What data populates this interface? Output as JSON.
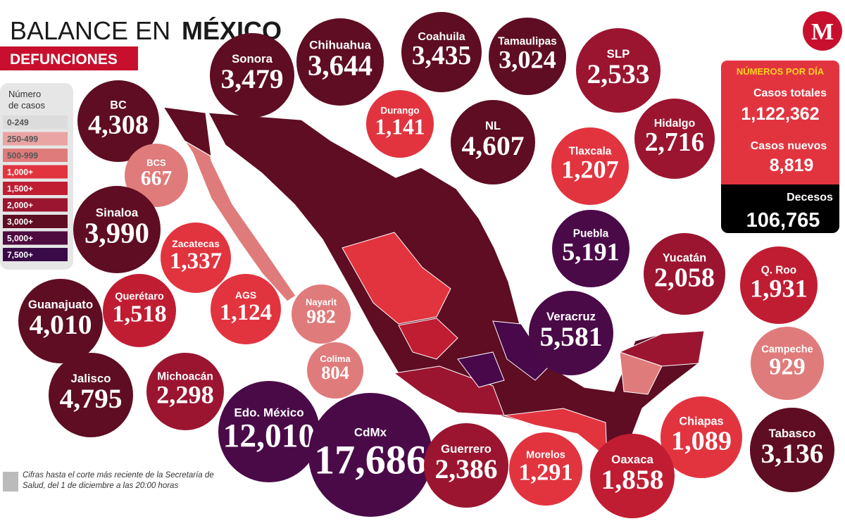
{
  "header": {
    "title_light": "BALANCE EN",
    "title_bold": "MÉXICO",
    "subtitle": "DEFUNCIONES"
  },
  "legend": {
    "title": "Número de casos",
    "items": [
      "0-249",
      "250-499",
      "500-999",
      "1,000+",
      "1,500+",
      "2,000+",
      "3,000+",
      "5,000+",
      "7,500+"
    ]
  },
  "states": [
    {
      "name": "Sonora",
      "value": "3,479"
    },
    {
      "name": "Chihuahua",
      "value": "3,644"
    },
    {
      "name": "Coahuila",
      "value": "3,435"
    },
    {
      "name": "Tamaulipas",
      "value": "3,024"
    },
    {
      "name": "SLP",
      "value": "2,533"
    },
    {
      "name": "BC",
      "value": "4,308"
    },
    {
      "name": "Durango",
      "value": "1,141"
    },
    {
      "name": "NL",
      "value": "4,607"
    },
    {
      "name": "Tlaxcala",
      "value": "1,207"
    },
    {
      "name": "Hidalgo",
      "value": "2,716"
    },
    {
      "name": "BCS",
      "value": "667"
    },
    {
      "name": "Sinaloa",
      "value": "3,990"
    },
    {
      "name": "Zacatecas",
      "value": "1,337"
    },
    {
      "name": "Puebla",
      "value": "5,191"
    },
    {
      "name": "Yucatán",
      "value": "2,058"
    },
    {
      "name": "Q. Roo",
      "value": "1,931"
    },
    {
      "name": "Querétaro",
      "value": "1,518"
    },
    {
      "name": "AGS",
      "value": "1,124"
    },
    {
      "name": "Nayarit",
      "value": "982"
    },
    {
      "name": "Guanajuato",
      "value": "4,010"
    },
    {
      "name": "Veracruz",
      "value": "5,581"
    },
    {
      "name": "Campeche",
      "value": "929"
    },
    {
      "name": "Colima",
      "value": "804"
    },
    {
      "name": "Jalisco",
      "value": "4,795"
    },
    {
      "name": "Michoacán",
      "value": "2,298"
    },
    {
      "name": "Edo. México",
      "value": "12,010"
    },
    {
      "name": "CdMx",
      "value": "17,686"
    },
    {
      "name": "Guerrero",
      "value": "2,386"
    },
    {
      "name": "Morelos",
      "value": "1,291"
    },
    {
      "name": "Chiapas",
      "value": "1,089"
    },
    {
      "name": "Oaxaca",
      "value": "1,858"
    },
    {
      "name": "Tabasco",
      "value": "3,136"
    }
  ],
  "daily": {
    "title": "NÚMEROS POR DÍA",
    "total_label": "Casos totales",
    "total_value": "1,122,362",
    "new_label": "Casos nuevos",
    "new_value": "8,819",
    "deaths_label": "Decesos",
    "deaths_value": "106,765"
  },
  "footnote": "Cifras hasta el corte más reciente de la Secretaría de Salud, del 1 de diciembre a las 20:00 horas",
  "logo": "M"
}
